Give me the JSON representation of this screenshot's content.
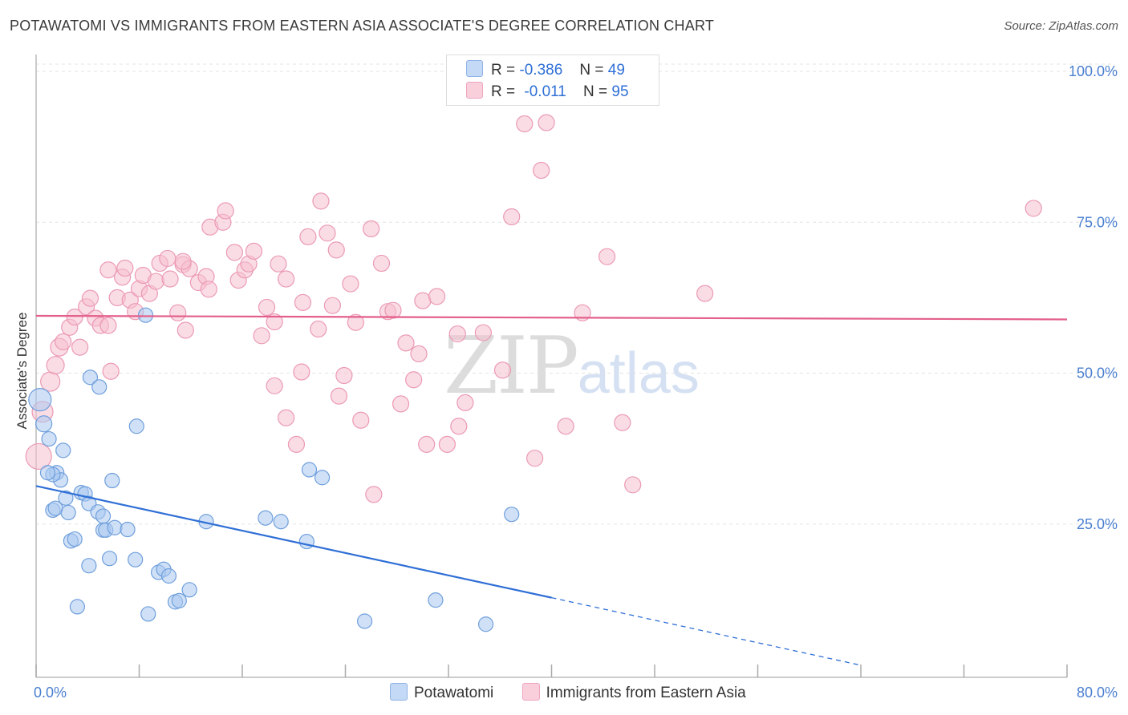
{
  "title": "POTAWATOMI VS IMMIGRANTS FROM EASTERN ASIA ASSOCIATE'S DEGREE CORRELATION CHART",
  "source": "Source: ZipAtlas.com",
  "watermark": {
    "zip": "ZIP",
    "atlas": "atlas"
  },
  "legend": {
    "r_label": "R =",
    "n_label": "N =",
    "series1": {
      "r": "-0.386",
      "n": "49"
    },
    "series2": {
      "r": "-0.011",
      "n": "95"
    }
  },
  "colors": {
    "blue_fill": "#a9c8f0",
    "blue_stroke": "#6f9fdc",
    "blue_line": "#2f6fd6",
    "pink_fill": "#f6bfd0",
    "pink_stroke": "#eb9ab4",
    "pink_line": "#e35f8a",
    "grid": "#e3e3e3",
    "tick": "#4a7fd0"
  },
  "chart_data": {
    "type": "scatter",
    "title": "POTAWATOMI VS IMMIGRANTS FROM EASTERN ASIA ASSOCIATE'S DEGREE CORRELATION CHART",
    "xlabel": "",
    "ylabel": "Associate's Degree",
    "xlim": [
      0,
      80
    ],
    "ylim": [
      0,
      100
    ],
    "x_tick_labels": [
      "0.0%",
      "80.0%"
    ],
    "y_tick_labels": [
      "25.0%",
      "50.0%",
      "75.0%",
      "100.0%"
    ],
    "y_ticks": [
      25,
      50,
      75,
      100
    ],
    "series": [
      {
        "name": "Potawatomi",
        "color": "#a9c8f0",
        "trend": {
          "x0": 0,
          "y0": 31.3,
          "x1": 40,
          "y1": 12.8,
          "dash_to_x": 64,
          "dash_to_y": 1.6
        },
        "points": [
          [
            0.3,
            45.6,
            14
          ],
          [
            0.6,
            41.6,
            10
          ],
          [
            1.0,
            39.1,
            9
          ],
          [
            1.6,
            33.5,
            9
          ],
          [
            1.9,
            32.3,
            9
          ],
          [
            2.1,
            37.2,
            9
          ],
          [
            1.3,
            33.2,
            9
          ],
          [
            1.3,
            27.3,
            9
          ],
          [
            1.5,
            27.6,
            9
          ],
          [
            2.3,
            29.3,
            9
          ],
          [
            2.5,
            26.9,
            9
          ],
          [
            2.7,
            22.2,
            9
          ],
          [
            3.0,
            22.5,
            9
          ],
          [
            3.5,
            30.2,
            9
          ],
          [
            3.8,
            30.0,
            9
          ],
          [
            4.1,
            28.4,
            9
          ],
          [
            4.8,
            27.0,
            9
          ],
          [
            4.2,
            49.3,
            9
          ],
          [
            4.9,
            47.7,
            9
          ],
          [
            5.9,
            32.2,
            9
          ],
          [
            5.2,
            24.0,
            9
          ],
          [
            5.4,
            24.0,
            9
          ],
          [
            6.1,
            24.4,
            9
          ],
          [
            7.1,
            24.1,
            9
          ],
          [
            7.8,
            41.2,
            9
          ],
          [
            8.5,
            59.6,
            9
          ],
          [
            4.1,
            18.1,
            9
          ],
          [
            5.7,
            19.3,
            9
          ],
          [
            7.7,
            19.1,
            9
          ],
          [
            9.5,
            17.0,
            9
          ],
          [
            9.9,
            17.5,
            9
          ],
          [
            10.3,
            16.4,
            9
          ],
          [
            10.8,
            12.1,
            9
          ],
          [
            11.1,
            12.3,
            9
          ],
          [
            11.9,
            14.1,
            9
          ],
          [
            3.2,
            11.3,
            9
          ],
          [
            8.7,
            10.1,
            9
          ],
          [
            13.2,
            25.4,
            9
          ],
          [
            17.8,
            26.0,
            9
          ],
          [
            19.0,
            25.4,
            9
          ],
          [
            21.2,
            34.0,
            9
          ],
          [
            22.2,
            32.7,
            9
          ],
          [
            21.0,
            22.1,
            9
          ],
          [
            25.5,
            8.9,
            9
          ],
          [
            31.0,
            12.4,
            9
          ],
          [
            36.9,
            26.6,
            9
          ],
          [
            34.9,
            8.4,
            9
          ],
          [
            5.2,
            26.3,
            9
          ],
          [
            0.9,
            33.5,
            9
          ]
        ]
      },
      {
        "name": "Immigrants from Eastern Asia",
        "color": "#f6bfd0",
        "trend": {
          "x0": 0,
          "y0": 59.5,
          "x1": 80,
          "y1": 58.9
        },
        "points": [
          [
            0.2,
            36.2,
            16
          ],
          [
            0.5,
            43.6,
            13
          ],
          [
            1.1,
            48.6,
            12
          ],
          [
            1.5,
            51.3,
            11
          ],
          [
            1.8,
            54.3,
            11
          ],
          [
            2.1,
            55.2,
            10
          ],
          [
            2.6,
            57.6,
            10
          ],
          [
            3.0,
            59.3,
            10
          ],
          [
            3.4,
            54.3,
            10
          ],
          [
            3.9,
            61.0,
            10
          ],
          [
            4.2,
            62.4,
            10
          ],
          [
            4.6,
            59.1,
            10
          ],
          [
            5.0,
            57.9,
            10
          ],
          [
            5.6,
            67.1,
            10
          ],
          [
            5.8,
            50.3,
            10
          ],
          [
            6.3,
            62.5,
            10
          ],
          [
            6.7,
            65.9,
            10
          ],
          [
            6.9,
            67.4,
            10
          ],
          [
            7.3,
            62.1,
            10
          ],
          [
            7.7,
            60.2,
            10
          ],
          [
            8.0,
            64.0,
            10
          ],
          [
            8.3,
            66.2,
            10
          ],
          [
            8.8,
            63.2,
            10
          ],
          [
            9.3,
            65.2,
            10
          ],
          [
            9.6,
            68.2,
            10
          ],
          [
            10.2,
            69.0,
            10
          ],
          [
            10.4,
            65.6,
            10
          ],
          [
            11.0,
            60.0,
            10
          ],
          [
            11.4,
            68.0,
            10
          ],
          [
            11.6,
            57.1,
            10
          ],
          [
            11.9,
            67.3,
            10
          ],
          [
            12.6,
            65.0,
            10
          ],
          [
            13.2,
            66.0,
            10
          ],
          [
            13.4,
            63.9,
            10
          ],
          [
            13.5,
            74.2,
            10
          ],
          [
            14.5,
            75.0,
            10
          ],
          [
            14.7,
            76.9,
            10
          ],
          [
            15.4,
            70.0,
            10
          ],
          [
            15.7,
            65.4,
            10
          ],
          [
            16.2,
            67.1,
            10
          ],
          [
            16.5,
            68.1,
            10
          ],
          [
            16.9,
            70.2,
            10
          ],
          [
            17.5,
            56.2,
            10
          ],
          [
            17.9,
            60.9,
            10
          ],
          [
            18.5,
            58.5,
            10
          ],
          [
            18.8,
            68.1,
            10
          ],
          [
            19.4,
            65.6,
            10
          ],
          [
            18.5,
            47.9,
            10
          ],
          [
            19.4,
            42.6,
            10
          ],
          [
            20.2,
            38.2,
            10
          ],
          [
            20.6,
            50.2,
            10
          ],
          [
            20.7,
            61.7,
            10
          ],
          [
            21.1,
            72.6,
            10
          ],
          [
            21.9,
            57.3,
            10
          ],
          [
            22.1,
            78.5,
            10
          ],
          [
            22.6,
            73.2,
            10
          ],
          [
            23.0,
            61.2,
            10
          ],
          [
            23.3,
            70.4,
            10
          ],
          [
            23.5,
            46.2,
            10
          ],
          [
            23.9,
            49.6,
            10
          ],
          [
            24.4,
            64.8,
            10
          ],
          [
            24.8,
            58.4,
            10
          ],
          [
            25.2,
            42.2,
            10
          ],
          [
            26.0,
            73.9,
            10
          ],
          [
            26.8,
            68.2,
            10
          ],
          [
            27.3,
            60.2,
            10
          ],
          [
            27.7,
            60.4,
            10
          ],
          [
            28.3,
            44.9,
            10
          ],
          [
            28.7,
            55.0,
            10
          ],
          [
            29.3,
            48.9,
            10
          ],
          [
            29.7,
            53.2,
            10
          ],
          [
            30.0,
            62.0,
            10
          ],
          [
            30.3,
            38.2,
            10
          ],
          [
            31.1,
            62.7,
            10
          ],
          [
            31.9,
            38.2,
            10
          ],
          [
            32.7,
            56.5,
            10
          ],
          [
            32.8,
            41.2,
            10
          ],
          [
            33.3,
            45.1,
            10
          ],
          [
            34.7,
            56.7,
            10
          ],
          [
            36.2,
            50.5,
            10
          ],
          [
            36.9,
            75.9,
            10
          ],
          [
            37.9,
            91.3,
            10
          ],
          [
            38.7,
            35.9,
            10
          ],
          [
            39.2,
            83.6,
            10
          ],
          [
            39.6,
            91.5,
            10
          ],
          [
            41.1,
            41.2,
            10
          ],
          [
            42.4,
            60.0,
            10
          ],
          [
            44.3,
            69.3,
            10
          ],
          [
            45.5,
            41.8,
            10
          ],
          [
            46.3,
            31.5,
            10
          ],
          [
            51.9,
            63.2,
            10
          ],
          [
            77.4,
            77.3,
            10
          ],
          [
            26.2,
            29.9,
            10
          ],
          [
            11.4,
            68.5,
            10
          ],
          [
            5.6,
            57.9,
            10
          ]
        ]
      }
    ]
  },
  "bottom_legend": [
    "Potawatomi",
    "Immigrants from Eastern Asia"
  ]
}
